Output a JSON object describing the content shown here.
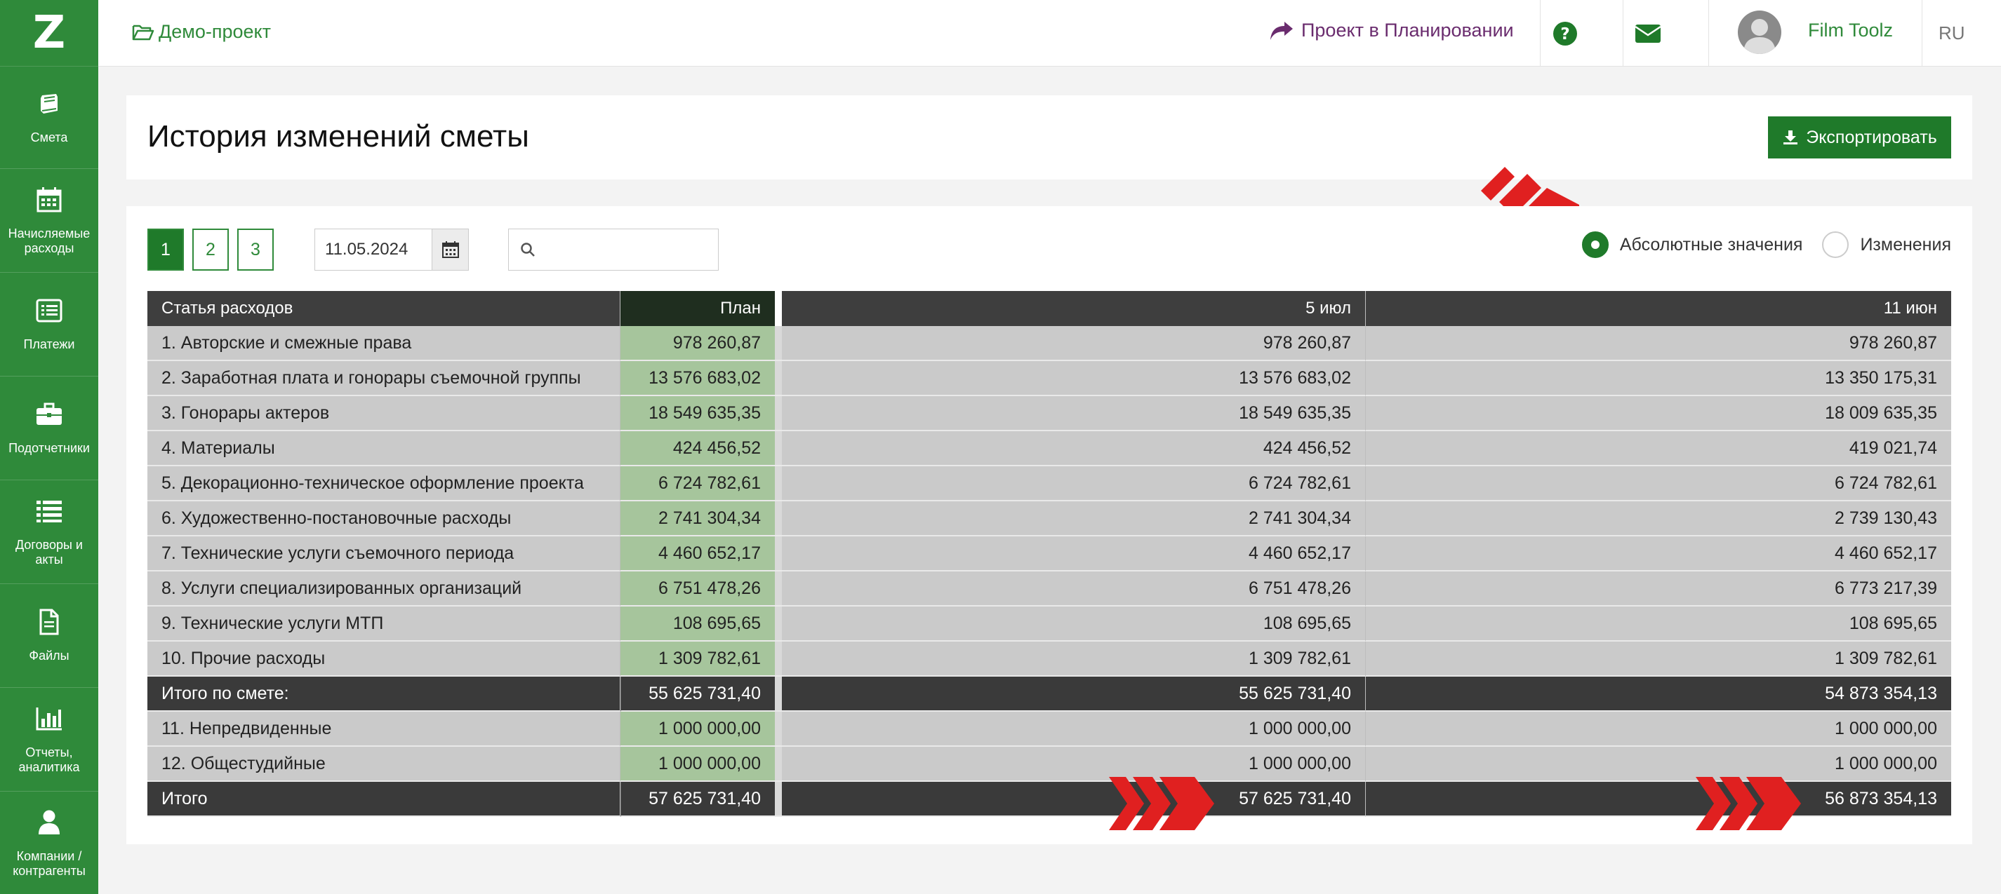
{
  "app": {
    "logo": "Z",
    "project": "Демо-проект",
    "planning_link": "Проект в Планировании",
    "username": "Film Toolz",
    "language": "RU"
  },
  "sidebar": {
    "items": [
      {
        "label": "Смета",
        "icon": "book-icon"
      },
      {
        "label": "Начисляемые расходы",
        "icon": "calendar-icon"
      },
      {
        "label": "Платежи",
        "icon": "list-card-icon"
      },
      {
        "label": "Подотчетники",
        "icon": "briefcase-icon"
      },
      {
        "label": "Договоры и акты",
        "icon": "list-icon"
      },
      {
        "label": "Файлы",
        "icon": "file-icon"
      },
      {
        "label": "Отчеты, аналитика",
        "icon": "bar-chart-icon"
      },
      {
        "label": "Компании / контрагенты",
        "icon": "user-icon"
      }
    ]
  },
  "page": {
    "title": "История изменений сметы",
    "export_label": "Экспортировать"
  },
  "toolbar": {
    "pages": [
      "1",
      "2",
      "3"
    ],
    "active_page": "1",
    "date_value": "11.05.2024",
    "search_value": "",
    "radio_absolute": "Абсолютные значения",
    "radio_changes": "Изменения",
    "selected_mode": "absolute"
  },
  "table": {
    "headers": {
      "name": "Статья расходов",
      "plan": "План",
      "v1": "5 июл",
      "v2": "11 июн"
    },
    "rows": [
      {
        "type": "data",
        "name": "1. Авторские и смежные права",
        "plan": "978 260,87",
        "v1": "978 260,87",
        "v2": "978 260,87"
      },
      {
        "type": "data",
        "name": "2. Заработная плата и гонорары съемочной группы",
        "plan": "13 576 683,02",
        "v1": "13 576 683,02",
        "v2": "13 350 175,31"
      },
      {
        "type": "data",
        "name": "3. Гонорары актеров",
        "plan": "18 549 635,35",
        "v1": "18 549 635,35",
        "v2": "18 009 635,35"
      },
      {
        "type": "data",
        "name": "4. Материалы",
        "plan": "424 456,52",
        "v1": "424 456,52",
        "v2": "419 021,74"
      },
      {
        "type": "data",
        "name": "5. Декорационно-техническое оформление проекта",
        "plan": "6 724 782,61",
        "v1": "6 724 782,61",
        "v2": "6 724 782,61"
      },
      {
        "type": "data",
        "name": "6. Художественно-постановочные расходы",
        "plan": "2 741 304,34",
        "v1": "2 741 304,34",
        "v2": "2 739 130,43"
      },
      {
        "type": "data",
        "name": "7. Технические услуги съемочного периода",
        "plan": "4 460 652,17",
        "v1": "4 460 652,17",
        "v2": "4 460 652,17"
      },
      {
        "type": "data",
        "name": "8. Услуги специализированных организаций",
        "plan": "6 751 478,26",
        "v1": "6 751 478,26",
        "v2": "6 773 217,39"
      },
      {
        "type": "data",
        "name": "9. Технические услуги МТП",
        "plan": "108 695,65",
        "v1": "108 695,65",
        "v2": "108 695,65"
      },
      {
        "type": "data",
        "name": "10. Прочие расходы",
        "plan": "1 309 782,61",
        "v1": "1 309 782,61",
        "v2": "1 309 782,61"
      },
      {
        "type": "total",
        "name": "Итого по смете:",
        "plan": "55 625 731,40",
        "v1": "55 625 731,40",
        "v2": "54 873 354,13"
      },
      {
        "type": "data",
        "name": "11. Непредвиденные",
        "plan": "1 000 000,00",
        "v1": "1 000 000,00",
        "v2": "1 000 000,00"
      },
      {
        "type": "data",
        "name": "12. Общестудийные",
        "plan": "1 000 000,00",
        "v1": "1 000 000,00",
        "v2": "1 000 000,00"
      },
      {
        "type": "total",
        "name": "Итого",
        "plan": "57 625 731,40",
        "v1": "57 625 731,40",
        "v2": "56 873 354,13"
      }
    ]
  },
  "colors": {
    "brand_green": "#2f8a3a",
    "button_green": "#1f7a2a",
    "plan_column": "#a6c59c",
    "highlight_arrows": "#e02020",
    "planning_link": "#6a2c6e"
  }
}
